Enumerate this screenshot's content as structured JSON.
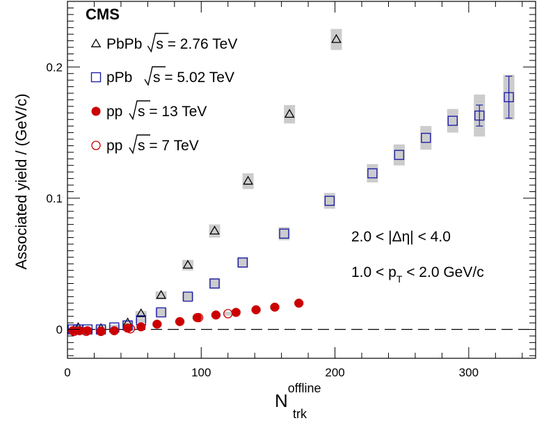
{
  "chart_data": {
    "type": "scatter",
    "experiment": "CMS",
    "xlabel_main": "N",
    "xlabel_sup": "offline",
    "xlabel_sub": "trk",
    "ylabel": "Associated yield / (GeV/c)",
    "xlim": [
      0,
      350
    ],
    "ylim": [
      -0.022,
      0.25
    ],
    "xticks": [
      0,
      100,
      200,
      300
    ],
    "xtick_labels": [
      "0",
      "100",
      "200",
      "300"
    ],
    "yticks": [
      0,
      0.1,
      0.2
    ],
    "ytick_labels": [
      "0",
      "0.1",
      "0.2"
    ],
    "grid": false,
    "zero_line": "dashed",
    "legend_position": "top-left",
    "annotations": {
      "deta": "2.0 < |Δη| < 4.0",
      "pt_main": "1.0 < p",
      "pt_sub": "T",
      "pt_rest": " < 2.0 GeV/c"
    },
    "series": [
      {
        "name": "PbPb",
        "label_prefix": "PbPb",
        "label_suffix": "s = 2.76 TeV",
        "marker": "open-triangle",
        "color": "#000000",
        "x": [
          8,
          25,
          45,
          55,
          70,
          90,
          110,
          135,
          166,
          201
        ],
        "y": [
          0.0015,
          0.0008,
          0.005,
          0.012,
          0.026,
          0.049,
          0.075,
          0.113,
          0.164,
          0.221
        ],
        "sys": [
          0.002,
          0.002,
          0.002,
          0.002,
          0.003,
          0.004,
          0.005,
          0.006,
          0.007,
          0.008
        ]
      },
      {
        "name": "pPb",
        "label_prefix": "pPb",
        "label_suffix": "s = 5.02 TeV",
        "marker": "open-square",
        "color": "#1f1fa8",
        "x": [
          4,
          8,
          15,
          25,
          35,
          45,
          55,
          70,
          90,
          110,
          131,
          162,
          196,
          228,
          248,
          268,
          288,
          308,
          330
        ],
        "y": [
          0.0,
          0.0,
          0.0,
          0.0,
          0.0015,
          0.003,
          0.007,
          0.013,
          0.025,
          0.035,
          0.051,
          0.073,
          0.098,
          0.119,
          0.133,
          0.146,
          0.159,
          0.163,
          0.177
        ],
        "sys": [
          0.001,
          0.001,
          0.001,
          0.001,
          0.002,
          0.002,
          0.002,
          0.003,
          0.003,
          0.004,
          0.004,
          0.005,
          0.006,
          0.007,
          0.008,
          0.009,
          0.009,
          0.016,
          0.017
        ],
        "stat": [
          0,
          0,
          0,
          0,
          0,
          0,
          0,
          0,
          0,
          0,
          0,
          0,
          0,
          0,
          0,
          0,
          0,
          0.008,
          0.016
        ]
      },
      {
        "name": "pp 13 TeV",
        "label_prefix": "pp",
        "label_suffix": "s = 13 TeV",
        "marker": "filled-circle",
        "color": "#cc0000",
        "x": [
          4,
          9,
          15,
          25,
          35,
          45,
          55,
          67,
          84,
          97,
          111,
          126,
          141,
          155,
          173
        ],
        "y": [
          -0.001,
          -0.001,
          -0.001,
          -0.0015,
          -0.001,
          0.001,
          0.002,
          0.004,
          0.006,
          0.009,
          0.011,
          0.013,
          0.015,
          0.017,
          0.02
        ],
        "sys": [
          0.0015,
          0.0015,
          0.0015,
          0.0015,
          0.0015,
          0.0015,
          0.0015,
          0.0015,
          0.0015,
          0.0015,
          0.0015,
          0.0015,
          0.0015,
          0.0015,
          0.0015
        ]
      },
      {
        "name": "pp 7 TeV",
        "label_prefix": "pp",
        "label_suffix": "s = 7 TeV",
        "marker": "open-circle",
        "color": "#cc0000",
        "x": [
          5,
          14,
          25,
          47,
          98,
          120
        ],
        "y": [
          -0.0015,
          -0.0015,
          -0.0015,
          0.0005,
          0.009,
          0.012
        ],
        "sys": [
          0.0015,
          0.0015,
          0.0015,
          0.0015,
          0.0015,
          0.0015
        ]
      }
    ]
  }
}
